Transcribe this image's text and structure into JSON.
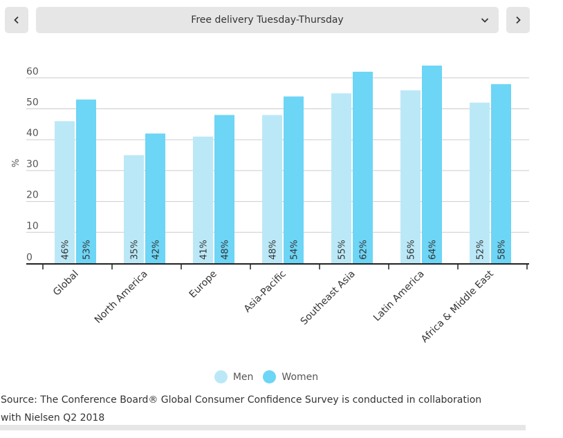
{
  "navigation": {
    "selected_option": "Free delivery Tuesday-Thursday"
  },
  "chart_data": {
    "type": "bar",
    "title": "",
    "xlabel": "",
    "ylabel": "%",
    "ylim": [
      0,
      60
    ],
    "yticks": [
      0,
      10,
      20,
      30,
      40,
      50,
      60
    ],
    "grid": true,
    "legend_position": "bottom",
    "categories": [
      "Global",
      "North America",
      "Europe",
      "Asia-Pacific",
      "Southeast Asia",
      "Latin America",
      "Africa & Middle East"
    ],
    "series": [
      {
        "name": "Men",
        "color": "#bbe8f7",
        "values": [
          46,
          35,
          41,
          48,
          55,
          56,
          52
        ],
        "labels": [
          "46%",
          "35%",
          "41%",
          "48%",
          "55%",
          "56%",
          "52%"
        ]
      },
      {
        "name": "Women",
        "color": "#6dd5f5",
        "values": [
          53,
          42,
          48,
          54,
          62,
          64,
          58
        ],
        "labels": [
          "53%",
          "42%",
          "48%",
          "54%",
          "62%",
          "64%",
          "58%"
        ]
      }
    ]
  },
  "source_note": "Source: The Conference Board® Global Consumer Confidence Survey is conducted in collaboration with Nielsen Q2 2018"
}
